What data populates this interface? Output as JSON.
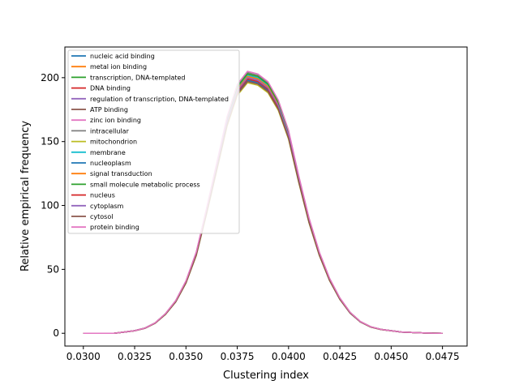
{
  "chart_data": {
    "type": "line",
    "title": "",
    "xlabel": "Clustering index",
    "ylabel": "Relative empirical frequency",
    "xlim": [
      0.0291,
      0.0487
    ],
    "ylim": [
      -10,
      224
    ],
    "grid": false,
    "legend_position": "top-left",
    "x_ticks": [
      0.03,
      0.0325,
      0.035,
      0.0375,
      0.04,
      0.0425,
      0.045,
      0.0475
    ],
    "x_tick_labels": [
      "0.0300",
      "0.0325",
      "0.0350",
      "0.0375",
      "0.0400",
      "0.0425",
      "0.0450",
      "0.0475"
    ],
    "y_ticks": [
      0,
      50,
      100,
      150,
      200
    ],
    "y_tick_labels": [
      "0",
      "50",
      "100",
      "150",
      "200"
    ],
    "x": [
      0.03,
      0.0315,
      0.032,
      0.0325,
      0.033,
      0.0335,
      0.034,
      0.0345,
      0.035,
      0.0355,
      0.036,
      0.0365,
      0.037,
      0.0375,
      0.038,
      0.0385,
      0.039,
      0.0395,
      0.04,
      0.0405,
      0.041,
      0.0415,
      0.042,
      0.0425,
      0.043,
      0.0435,
      0.044,
      0.0445,
      0.045,
      0.0455,
      0.046,
      0.0465,
      0.047,
      0.0475
    ],
    "base_values": [
      0,
      0,
      1,
      2,
      4,
      8,
      15,
      25,
      40,
      62,
      95,
      130,
      165,
      190,
      200,
      198,
      192,
      178,
      155,
      120,
      88,
      62,
      42,
      27,
      16,
      9,
      5,
      3,
      2,
      1,
      0.6,
      0.3,
      0.1,
      0
    ],
    "series": [
      {
        "name": "nucleic acid binding",
        "color": "#1f77b4",
        "offset": 0
      },
      {
        "name": "metal ion binding",
        "color": "#ff7f0e",
        "offset": 3
      },
      {
        "name": "transcription, DNA-templated",
        "color": "#2ca02c",
        "offset": -2
      },
      {
        "name": "DNA binding",
        "color": "#d62728",
        "offset": 1
      },
      {
        "name": "regulation of transcription, DNA-templated",
        "color": "#9467bd",
        "offset": -3
      },
      {
        "name": "ATP binding",
        "color": "#8c564b",
        "offset": 2
      },
      {
        "name": "zinc ion binding",
        "color": "#e377c2",
        "offset": -1
      },
      {
        "name": "intracellular",
        "color": "#7f7f7f",
        "offset": 4
      },
      {
        "name": "mitochondrion",
        "color": "#bcbd22",
        "offset": -4
      },
      {
        "name": "membrane",
        "color": "#17becf",
        "offset": 2
      },
      {
        "name": "nucleoplasm",
        "color": "#1f77b4",
        "offset": -2
      },
      {
        "name": "signal transduction",
        "color": "#ff7f0e",
        "offset": 1
      },
      {
        "name": "small molecule metabolic process",
        "color": "#2ca02c",
        "offset": 3
      },
      {
        "name": "nucleus",
        "color": "#d62728",
        "offset": -1
      },
      {
        "name": "cytoplasm",
        "color": "#9467bd",
        "offset": 0
      },
      {
        "name": "cytosol",
        "color": "#8c564b",
        "offset": -3
      },
      {
        "name": "protein binding",
        "color": "#e377c2",
        "offset": 5
      }
    ]
  }
}
